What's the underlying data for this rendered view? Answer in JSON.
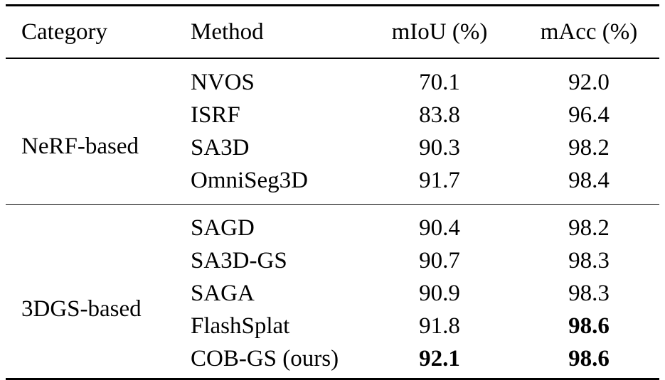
{
  "table": {
    "headers": {
      "category": "Category",
      "method": "Method",
      "miou": "mIoU (%)",
      "macc": "mAcc (%)"
    },
    "groups": [
      {
        "category": "NeRF-based",
        "rows": [
          {
            "method": "NVOS",
            "miou": "70.1",
            "macc": "92.0"
          },
          {
            "method": "ISRF",
            "miou": "83.8",
            "macc": "96.4"
          },
          {
            "method": "SA3D",
            "miou": "90.3",
            "macc": "98.2"
          },
          {
            "method": "OmniSeg3D",
            "miou": "91.7",
            "macc": "98.4"
          }
        ]
      },
      {
        "category": "3DGS-based",
        "rows": [
          {
            "method": "SAGD",
            "miou": "90.4",
            "macc": "98.2"
          },
          {
            "method": "SA3D-GS",
            "miou": "90.7",
            "macc": "98.3"
          },
          {
            "method": "SAGA",
            "miou": "90.9",
            "macc": "98.3"
          },
          {
            "method": "FlashSplat",
            "miou": "91.8",
            "macc": "98.6",
            "macc_bold": true
          },
          {
            "method": "COB-GS (ours)",
            "miou": "92.1",
            "macc": "98.6",
            "miou_bold": true,
            "macc_bold": true
          }
        ]
      }
    ]
  }
}
